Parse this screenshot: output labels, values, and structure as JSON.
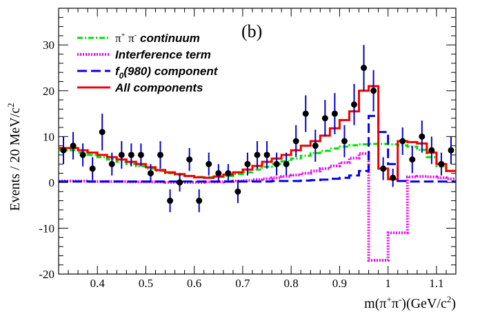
{
  "chart_data": {
    "type": "histogram-with-points",
    "panel_label": "(b)",
    "xlabel": {
      "pre": "m(π",
      "sup1": "+",
      "mid": "π",
      "sup2": "-",
      "post": ")(GeV/c",
      "sup3": "2",
      "end": ")"
    },
    "ylabel": {
      "pre": "Events / 20 MeV/c",
      "sup": "2"
    },
    "xlim": [
      0.32,
      1.14
    ],
    "ylim": [
      -20,
      38
    ],
    "x_ticks": [
      "0.4",
      "0.5",
      "0.6",
      "0.7",
      "0.8",
      "0.9",
      "1",
      "1.1"
    ],
    "y_ticks": [
      "-20",
      "-10",
      "0",
      "10",
      "20",
      "30"
    ],
    "bin_edges": [
      0.32,
      0.34,
      0.36,
      0.38,
      0.4,
      0.42,
      0.44,
      0.46,
      0.48,
      0.5,
      0.52,
      0.54,
      0.56,
      0.58,
      0.6,
      0.62,
      0.64,
      0.66,
      0.68,
      0.7,
      0.72,
      0.74,
      0.76,
      0.78,
      0.8,
      0.82,
      0.84,
      0.86,
      0.88,
      0.9,
      0.92,
      0.94,
      0.96,
      0.98,
      1.0,
      1.02,
      1.04,
      1.06,
      1.08,
      1.1,
      1.12,
      1.14
    ],
    "series": [
      {
        "name": "continuum",
        "color": "#00dd00",
        "style": "dashdot",
        "values": [
          7,
          7,
          6.5,
          6,
          5.5,
          5,
          4.5,
          4,
          3.5,
          3,
          2.5,
          2,
          1.7,
          1.4,
          1.2,
          1.1,
          1.2,
          1.4,
          1.8,
          2.2,
          2.8,
          3.4,
          4,
          4.6,
          5.2,
          5.8,
          6.4,
          6.9,
          7.4,
          7.8,
          8.1,
          8.3,
          8.4,
          8.4,
          8.3,
          8.1,
          7.8,
          7.1,
          5.5,
          3.5,
          2.5
        ]
      },
      {
        "name": "interference",
        "color": "#ee00ee",
        "style": "dotted",
        "values": [
          0.3,
          0.3,
          0.3,
          0.2,
          0.2,
          0.2,
          0.2,
          0.1,
          0.1,
          0.1,
          0.1,
          0,
          0,
          0,
          0,
          0.1,
          0.1,
          0.2,
          0.3,
          0.4,
          0.6,
          0.8,
          1,
          1.3,
          1.6,
          2,
          2.5,
          3,
          3.6,
          4.3,
          5.3,
          6.3,
          -17,
          -17,
          -11,
          -11,
          1.2,
          1.3,
          1.2,
          1,
          0.8
        ]
      },
      {
        "name": "f0",
        "color": "#0000ee",
        "style": "dashed",
        "values": [
          0.2,
          0.2,
          0.2,
          0.2,
          0.2,
          0.2,
          0.2,
          0.2,
          0.2,
          0.2,
          0.2,
          0.2,
          0.2,
          0.2,
          0.2,
          0.2,
          0.2,
          0.2,
          0.2,
          0.2,
          0.2,
          0.2,
          0.3,
          0.3,
          0.3,
          0.4,
          0.5,
          0.6,
          0.8,
          1,
          1.5,
          2.5,
          14.5,
          11,
          4,
          0.3,
          0.2,
          0.2,
          0.2,
          0.2,
          0.2
        ]
      },
      {
        "name": "all",
        "color": "#ee0000",
        "style": "solid",
        "values": [
          7.5,
          7.5,
          7,
          6.5,
          6,
          5.5,
          5,
          4.5,
          4,
          3.3,
          2.7,
          2.2,
          1.8,
          1.4,
          1.1,
          1,
          1.3,
          1.7,
          2.2,
          2.8,
          3.6,
          4.5,
          5.2,
          6,
          7,
          8,
          9,
          10.2,
          11.8,
          13.6,
          15.5,
          20,
          21,
          3,
          0.7,
          9,
          8.8,
          8.5,
          6.5,
          4,
          2.5
        ]
      }
    ],
    "data_points": {
      "x": [
        0.33,
        0.35,
        0.37,
        0.39,
        0.41,
        0.43,
        0.45,
        0.47,
        0.49,
        0.51,
        0.53,
        0.55,
        0.57,
        0.59,
        0.61,
        0.63,
        0.65,
        0.67,
        0.69,
        0.71,
        0.73,
        0.75,
        0.77,
        0.79,
        0.81,
        0.83,
        0.85,
        0.87,
        0.89,
        0.91,
        0.93,
        0.95,
        0.97,
        0.99,
        1.01,
        1.03,
        1.05,
        1.07,
        1.09,
        1.11,
        1.13
      ],
      "y": [
        7,
        8,
        6,
        3,
        11,
        4,
        6,
        6,
        6,
        2,
        6,
        -4,
        0,
        5,
        -4,
        4,
        2,
        2,
        -2,
        4,
        6,
        6,
        4,
        4,
        9,
        15,
        8,
        14,
        15,
        9,
        17,
        25,
        20,
        3,
        1,
        9,
        5,
        10,
        7,
        4,
        7
      ],
      "err": [
        3,
        3,
        2.5,
        2.5,
        4,
        2.5,
        3,
        2.5,
        2.5,
        2,
        3,
        2.5,
        2,
        2.5,
        2.5,
        2.5,
        2,
        2,
        2.5,
        2.5,
        3,
        3,
        2.5,
        2.5,
        3.5,
        4,
        3.5,
        4,
        4.5,
        3.5,
        4.5,
        5,
        4.5,
        2.5,
        2,
        3,
        3,
        3.5,
        3,
        2.5,
        3
      ]
    },
    "legend": {
      "position": "top-left",
      "entries": [
        {
          "series": "continuum",
          "label_pre": "π",
          "sup1": "+",
          "label_mid": " π",
          "sup2": "-",
          "label_post": " continuum"
        },
        {
          "series": "interference",
          "label": "Interference term"
        },
        {
          "series": "f0",
          "label_pre": "f",
          "sub": "0",
          "label_post": "(980) component"
        },
        {
          "series": "all",
          "label": "All components"
        }
      ]
    }
  }
}
